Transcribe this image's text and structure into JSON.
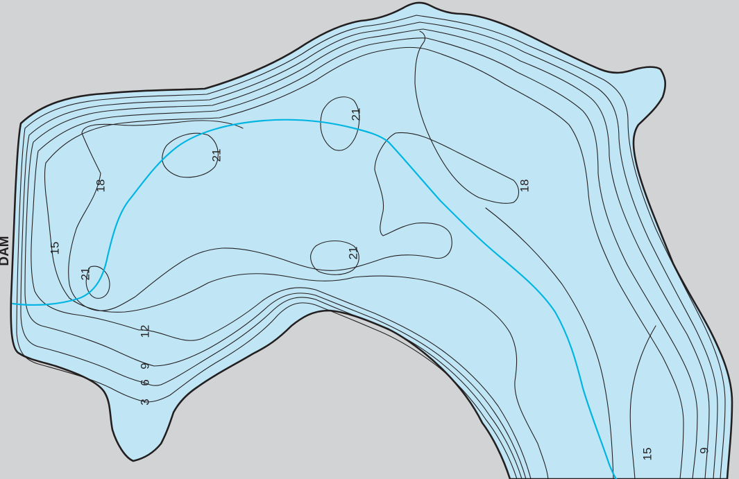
{
  "map": {
    "dam_label": "DAM",
    "colors": {
      "background": "#d1d3d4",
      "water": "#c0e6f5",
      "contour": "#231f20",
      "channel": "#00b5e2"
    },
    "contour_labels": [
      {
        "id": "d3",
        "text": "3"
      },
      {
        "id": "d6",
        "text": "6"
      },
      {
        "id": "d9-left",
        "text": "9"
      },
      {
        "id": "d12",
        "text": "12"
      },
      {
        "id": "d15-left",
        "text": "15"
      },
      {
        "id": "d18-left",
        "text": "18"
      },
      {
        "id": "d21-west",
        "text": "21"
      },
      {
        "id": "d21-north-a",
        "text": "21"
      },
      {
        "id": "d21-north-b",
        "text": "21"
      },
      {
        "id": "d21-central",
        "text": "21"
      },
      {
        "id": "d18-right",
        "text": "18"
      },
      {
        "id": "d15-bottom",
        "text": "15"
      },
      {
        "id": "d9-bottom",
        "text": "9"
      }
    ]
  }
}
